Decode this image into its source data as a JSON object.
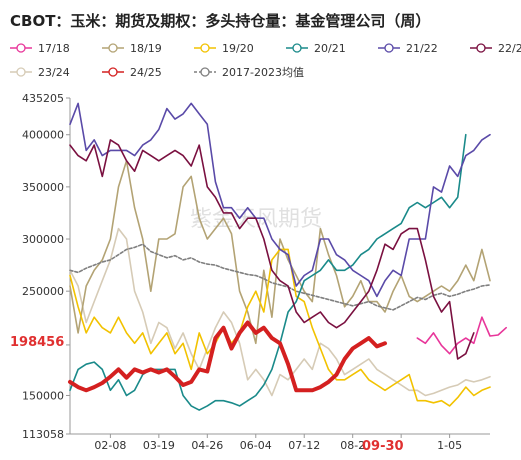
{
  "title": "CBOT：玉米：期货及期权：多头持仓量：基金管理公司（周）",
  "watermark": "紫金天风期货",
  "annotations": {
    "left_value": "198456",
    "date_label": "09-30"
  },
  "colors": {
    "17/18": "#e8369a",
    "18/19": "#b3a374",
    "19/20": "#f2c200",
    "20/21": "#1a8a8a",
    "21/22": "#5a4aa8",
    "22/23": "#7a1040",
    "23/24": "#d6cbb6",
    "24/25": "#d42020",
    "2017-2023均值": "#7f7f7f"
  },
  "chart_data": {
    "type": "line",
    "title": "CBOT：玉米：期货及期权：多头持仓量：基金管理公司（周）",
    "y_ticks": [
      113058,
      150000,
      198456,
      250000,
      300000,
      350000,
      400000,
      435205
    ],
    "y_tick_labels": [
      "113058",
      "150000",
      "",
      "250000",
      "300000",
      "350000",
      "400000",
      "435205"
    ],
    "ylim": [
      113058,
      435205
    ],
    "x_tick_labels": [
      "02-08",
      "03-19",
      "04-26",
      "06-04",
      "07-12",
      "08-2",
      "09-30",
      "1-05"
    ],
    "x_tick_index": [
      5,
      11,
      17,
      23,
      29,
      35,
      41,
      47
    ],
    "n_weeks": 53,
    "legend": [
      "17/18",
      "18/19",
      "19/20",
      "20/21",
      "21/22",
      "22/23",
      "23/24",
      "24/25",
      "2017-2023均值"
    ],
    "series": [
      {
        "name": "17/18",
        "start": 43,
        "values": [
          205000,
          200000,
          210000,
          198000,
          190000,
          200000,
          205000,
          200000,
          225000,
          207000,
          208000,
          215000
        ]
      },
      {
        "name": "18/19",
        "start": 0,
        "values": [
          255000,
          210000,
          255000,
          270000,
          280000,
          300000,
          350000,
          375000,
          330000,
          300000,
          250000,
          300000,
          300000,
          305000,
          350000,
          360000,
          320000,
          300000,
          310000,
          320000,
          305000,
          250000,
          230000,
          200000,
          270000,
          225000,
          300000,
          280000,
          265000,
          250000,
          240000,
          310000,
          285000,
          265000,
          235000,
          245000,
          260000,
          240000,
          240000,
          230000,
          250000,
          265000,
          245000,
          240000,
          245000,
          250000,
          255000,
          250000,
          260000,
          275000,
          260000,
          290000,
          260000
        ]
      },
      {
        "name": "19/20",
        "start": 0,
        "values": [
          265000,
          235000,
          210000,
          225000,
          215000,
          210000,
          225000,
          210000,
          200000,
          210000,
          190000,
          200000,
          210000,
          190000,
          200000,
          175000,
          210000,
          190000,
          200000,
          215000,
          200000,
          210000,
          235000,
          250000,
          230000,
          280000,
          290000,
          290000,
          245000,
          240000,
          215000,
          195000,
          175000,
          165000,
          165000,
          170000,
          175000,
          165000,
          160000,
          155000,
          160000,
          165000,
          170000,
          145000,
          145000,
          143000,
          145000,
          140000,
          148000,
          158000,
          150000,
          155000,
          158000
        ]
      },
      {
        "name": "20/21",
        "start": 0,
        "values": [
          155000,
          175000,
          180000,
          182000,
          175000,
          155000,
          165000,
          150000,
          155000,
          170000,
          175000,
          175000,
          175000,
          175000,
          150000,
          140000,
          136000,
          140000,
          145000,
          145000,
          143000,
          140000,
          145000,
          150000,
          160000,
          175000,
          200000,
          230000,
          240000,
          260000,
          265000,
          270000,
          280000,
          270000,
          270000,
          275000,
          285000,
          290000,
          300000,
          305000,
          310000,
          315000,
          330000,
          335000,
          330000,
          335000,
          340000,
          330000,
          340000,
          400000
        ]
      },
      {
        "name": "21/22",
        "start": 0,
        "values": [
          410000,
          430000,
          385000,
          395000,
          380000,
          385000,
          385000,
          385000,
          380000,
          390000,
          395000,
          405000,
          425000,
          415000,
          420000,
          430000,
          420000,
          410000,
          355000,
          330000,
          330000,
          320000,
          330000,
          320000,
          320000,
          300000,
          290000,
          285000,
          255000,
          265000,
          270000,
          300000,
          300000,
          285000,
          280000,
          270000,
          265000,
          260000,
          245000,
          260000,
          270000,
          265000,
          300000,
          300000,
          300000,
          350000,
          345000,
          370000,
          360000,
          380000,
          385000,
          395000,
          400000
        ]
      },
      {
        "name": "22/23",
        "start": 0,
        "values": [
          390000,
          380000,
          375000,
          390000,
          360000,
          395000,
          390000,
          375000,
          365000,
          385000,
          380000,
          375000,
          380000,
          385000,
          380000,
          370000,
          390000,
          350000,
          340000,
          325000,
          325000,
          310000,
          320000,
          320000,
          300000,
          270000,
          260000,
          255000,
          230000,
          220000,
          225000,
          230000,
          220000,
          215000,
          220000,
          230000,
          240000,
          250000,
          270000,
          295000,
          290000,
          305000,
          310000,
          310000,
          280000,
          245000,
          230000,
          240000,
          185000,
          190000,
          210000
        ]
      },
      {
        "name": "23/24",
        "start": 0,
        "values": [
          270000,
          255000,
          220000,
          240000,
          260000,
          280000,
          310000,
          300000,
          250000,
          230000,
          200000,
          220000,
          215000,
          195000,
          210000,
          190000,
          175000,
          195000,
          215000,
          230000,
          220000,
          200000,
          165000,
          175000,
          165000,
          150000,
          170000,
          165000,
          175000,
          185000,
          175000,
          200000,
          195000,
          185000,
          170000,
          175000,
          180000,
          185000,
          175000,
          170000,
          165000,
          160000,
          155000,
          155000,
          150000,
          152000,
          155000,
          158000,
          160000,
          165000,
          163000,
          165000,
          168000
        ]
      },
      {
        "name": "24/25",
        "start": 0,
        "values": [
          163000,
          158000,
          155000,
          158000,
          162000,
          168000,
          175000,
          167000,
          175000,
          172000,
          175000,
          172000,
          175000,
          168000,
          160000,
          163000,
          175000,
          173000,
          205000,
          215000,
          195000,
          210000,
          220000,
          210000,
          215000,
          205000,
          200000,
          180000,
          155000,
          155000,
          155000,
          158000,
          163000,
          170000,
          185000,
          195000,
          200000,
          205000,
          197000,
          200000
        ]
      },
      {
        "name": "2017-2023均值",
        "start": 0,
        "values": [
          270000,
          268000,
          272000,
          275000,
          278000,
          280000,
          285000,
          290000,
          292000,
          295000,
          288000,
          285000,
          282000,
          284000,
          280000,
          282000,
          278000,
          276000,
          275000,
          272000,
          270000,
          268000,
          266000,
          265000,
          262000,
          258000,
          256000,
          254000,
          250000,
          248000,
          246000,
          244000,
          242000,
          240000,
          238000,
          236000,
          238000,
          240000,
          236000,
          234000,
          232000,
          236000,
          240000,
          244000,
          242000,
          246000,
          248000,
          245000,
          247000,
          250000,
          252000,
          255000,
          256000
        ]
      }
    ]
  }
}
